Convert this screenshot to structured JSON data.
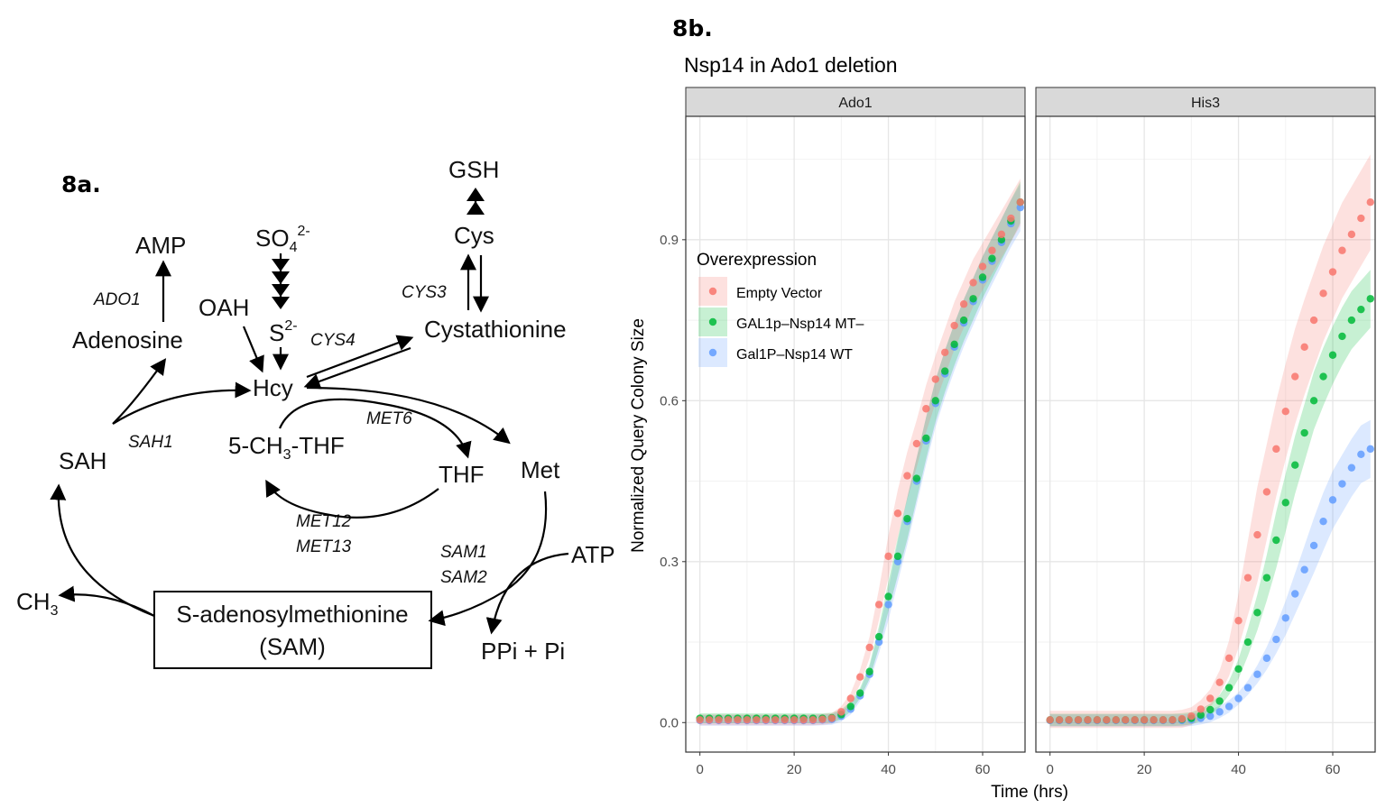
{
  "figure": {
    "panel_a_label": "8a.",
    "panel_b_label": "8b."
  },
  "pathway": {
    "nodes": {
      "amp": "AMP",
      "adenosine": "Adenosine",
      "oah": "OAH",
      "sulfate": "SO",
      "sulfate_sub": "4",
      "sulfate_sup": "2-",
      "sulfide": "S",
      "sulfide_sup": "2-",
      "gsh": "GSH",
      "cys": "Cys",
      "cystathionine": "Cystathionine",
      "hcy": "Hcy",
      "sah": "SAH",
      "methyl_thf_pre": "5-CH",
      "methyl_thf_sub": "3",
      "methyl_thf_post": "-THF",
      "thf": "THF",
      "met": "Met",
      "atp": "ATP",
      "ch3": "CH",
      "ch3_sub": "3",
      "sam_line1": "S-adenosylmethionine",
      "sam_line2": "(SAM)",
      "ppi": "PPi + Pi"
    },
    "enzymes": {
      "ado1": "ADO1",
      "cys3": "CYS3",
      "cys4": "CYS4",
      "met6": "MET6",
      "sah1": "SAH1",
      "met12": "MET12",
      "met13": "MET13",
      "sam1": "SAM1",
      "sam2": "SAM2"
    }
  },
  "chart_data": {
    "type": "scatter",
    "title": "Nsp14 in Ado1 deletion",
    "xlabel": "Time (hrs)",
    "ylabel": "Normalized Query Colony Size",
    "xlim": [
      -3,
      69
    ],
    "ylim": [
      -0.055,
      1.13
    ],
    "xticks": [
      0,
      20,
      40,
      60
    ],
    "yticks": [
      0.0,
      0.3,
      0.6,
      0.9
    ],
    "xtick_labels": [
      "0",
      "20",
      "40",
      "60"
    ],
    "ytick_labels": [
      "0.0",
      "0.3",
      "0.6",
      "0.9"
    ],
    "grid": true,
    "legend": {
      "title": "Overexpression",
      "position": "inside-left",
      "entries": [
        "Empty Vector",
        "GAL1p–Nsp14 MT–",
        "Gal1P–Nsp14 WT"
      ]
    },
    "series": [
      {
        "name": "Empty Vector",
        "color": "#F8766D"
      },
      {
        "name": "GAL1p–Nsp14 MT–",
        "color": "#00BA38"
      },
      {
        "name": "Gal1P–Nsp14 WT",
        "color": "#619CFF"
      }
    ],
    "x": [
      0,
      2,
      4,
      6,
      8,
      10,
      12,
      14,
      16,
      18,
      20,
      22,
      24,
      26,
      28,
      30,
      32,
      34,
      36,
      38,
      40,
      42,
      44,
      46,
      48,
      50,
      52,
      54,
      56,
      58,
      60,
      62,
      64,
      66,
      68
    ],
    "facets": [
      {
        "name": "Ado1",
        "values": [
          [
            0.005,
            0.005,
            0.005,
            0.005,
            0.005,
            0.005,
            0.005,
            0.005,
            0.005,
            0.005,
            0.005,
            0.005,
            0.005,
            0.006,
            0.008,
            0.02,
            0.045,
            0.085,
            0.14,
            0.22,
            0.31,
            0.39,
            0.46,
            0.52,
            0.585,
            0.64,
            0.69,
            0.74,
            0.78,
            0.82,
            0.85,
            0.88,
            0.91,
            0.94,
            0.97
          ],
          [
            0.008,
            0.008,
            0.008,
            0.008,
            0.008,
            0.008,
            0.008,
            0.008,
            0.008,
            0.008,
            0.008,
            0.008,
            0.008,
            0.008,
            0.009,
            0.015,
            0.03,
            0.055,
            0.095,
            0.16,
            0.235,
            0.31,
            0.38,
            0.455,
            0.53,
            0.6,
            0.655,
            0.705,
            0.75,
            0.79,
            0.83,
            0.865,
            0.9,
            0.935,
            0.97
          ],
          [
            0.004,
            0.004,
            0.004,
            0.004,
            0.004,
            0.004,
            0.004,
            0.004,
            0.004,
            0.004,
            0.004,
            0.004,
            0.004,
            0.005,
            0.006,
            0.012,
            0.025,
            0.05,
            0.09,
            0.15,
            0.22,
            0.3,
            0.375,
            0.45,
            0.525,
            0.595,
            0.65,
            0.7,
            0.745,
            0.785,
            0.825,
            0.86,
            0.895,
            0.93,
            0.96
          ]
        ],
        "ribbon_half_width": [
          0.04,
          0.035,
          0.04
        ]
      },
      {
        "name": "His3",
        "values": [
          [
            0.005,
            0.005,
            0.005,
            0.005,
            0.005,
            0.005,
            0.005,
            0.005,
            0.005,
            0.005,
            0.005,
            0.005,
            0.005,
            0.005,
            0.007,
            0.012,
            0.025,
            0.045,
            0.075,
            0.12,
            0.19,
            0.27,
            0.35,
            0.43,
            0.51,
            0.58,
            0.645,
            0.7,
            0.75,
            0.8,
            0.84,
            0.88,
            0.91,
            0.94,
            0.97
          ],
          [
            0.005,
            0.005,
            0.005,
            0.005,
            0.005,
            0.005,
            0.005,
            0.005,
            0.005,
            0.005,
            0.005,
            0.005,
            0.005,
            0.005,
            0.006,
            0.008,
            0.014,
            0.024,
            0.04,
            0.065,
            0.1,
            0.15,
            0.205,
            0.27,
            0.34,
            0.41,
            0.48,
            0.54,
            0.6,
            0.645,
            0.685,
            0.72,
            0.75,
            0.77,
            0.79
          ],
          [
            0.004,
            0.004,
            0.004,
            0.004,
            0.004,
            0.004,
            0.004,
            0.004,
            0.004,
            0.004,
            0.004,
            0.004,
            0.004,
            0.004,
            0.004,
            0.005,
            0.008,
            0.012,
            0.02,
            0.03,
            0.045,
            0.065,
            0.09,
            0.12,
            0.155,
            0.195,
            0.24,
            0.285,
            0.33,
            0.375,
            0.415,
            0.445,
            0.475,
            0.5,
            0.51
          ]
        ],
        "ribbon_half_width": [
          0.085,
          0.05,
          0.05
        ]
      }
    ]
  }
}
